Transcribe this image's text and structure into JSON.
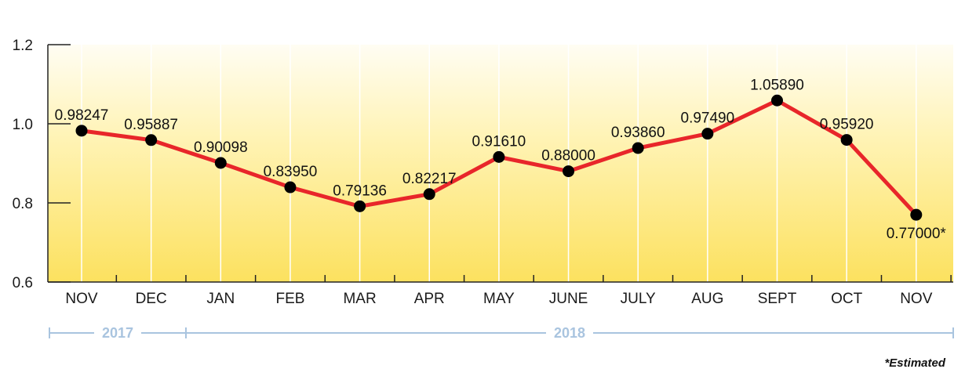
{
  "chart_data": {
    "type": "line",
    "categories": [
      "NOV",
      "DEC",
      "JAN",
      "FEB",
      "MAR",
      "APR",
      "MAY",
      "JUNE",
      "JULY",
      "AUG",
      "SEPT",
      "OCT",
      "NOV"
    ],
    "values": [
      0.98247,
      0.95887,
      0.90098,
      0.8395,
      0.79136,
      0.82217,
      0.9161,
      0.88,
      0.9386,
      0.9749,
      1.0589,
      0.9592,
      0.77
    ],
    "data_labels": [
      "0.98247",
      "0.95887",
      "0.90098",
      "0.83950",
      "0.79136",
      "0.82217",
      "0.91610",
      "0.88000",
      "0.93860",
      "0.97490",
      "1.05890",
      "0.95920",
      "0.77000*"
    ],
    "yticks": [
      "0.6",
      "0.8",
      "1.0",
      "1.2"
    ],
    "ylim": [
      0.6,
      1.2
    ],
    "year_groups": [
      {
        "label": "2017",
        "start": 0,
        "end": 1
      },
      {
        "label": "2018",
        "start": 2,
        "end": 12
      }
    ],
    "footnote": "*Estimated",
    "title": "",
    "xlabel": "",
    "ylabel": "",
    "grid": true,
    "colors": {
      "line": "#e8262a",
      "marker": "#000000",
      "grid": "#ffffff",
      "axis": "#222222",
      "background_top": "#fffdf3",
      "background_bottom": "#fce15f",
      "year_bracket": "#a9c4df"
    }
  }
}
